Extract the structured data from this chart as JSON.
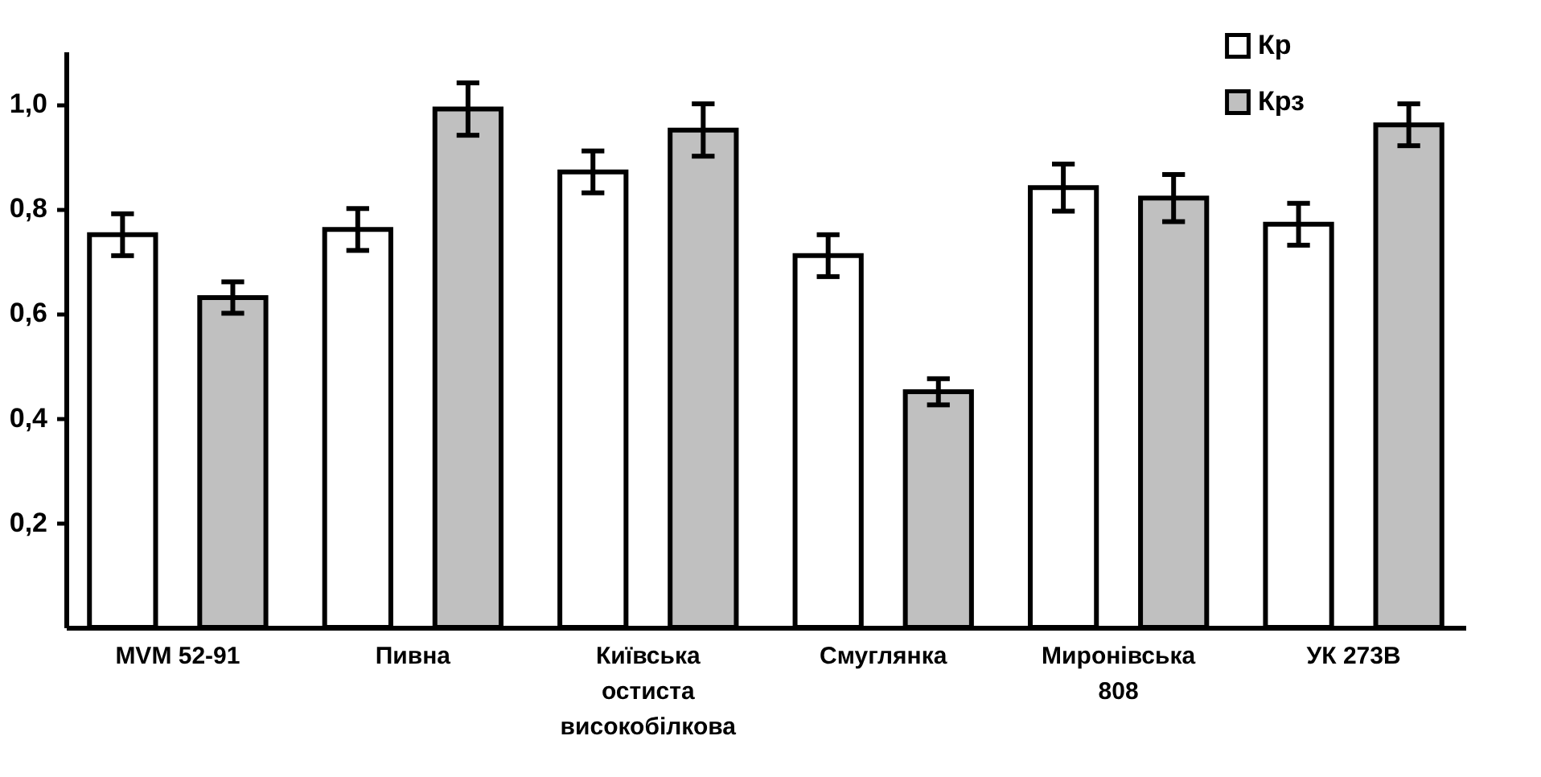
{
  "chart_data": {
    "type": "bar",
    "categories": [
      "MVM 52-91",
      "Пивна",
      "Київська остиста високобілкова",
      "Смуглянка",
      "Миронівська 808",
      "УК 273В"
    ],
    "series": [
      {
        "name": "Кр",
        "color": "#ffffff",
        "values": [
          0.75,
          0.76,
          0.87,
          0.71,
          0.84,
          0.77
        ],
        "errors": [
          0.04,
          0.04,
          0.04,
          0.04,
          0.045,
          0.04
        ]
      },
      {
        "name": "Крз",
        "color": "#c0c0c0",
        "values": [
          0.63,
          0.99,
          0.95,
          0.45,
          0.82,
          0.96
        ],
        "errors": [
          0.03,
          0.05,
          0.05,
          0.025,
          0.045,
          0.04
        ]
      }
    ],
    "ylim": [
      0,
      1.1
    ],
    "yticks": [
      {
        "value": 0.2,
        "label": "0,2"
      },
      {
        "value": 0.4,
        "label": "0,4"
      },
      {
        "value": 0.6,
        "label": "0,6"
      },
      {
        "value": 0.8,
        "label": "0,8"
      },
      {
        "value": 1.0,
        "label": "1,0"
      }
    ],
    "grid": false,
    "legend": "top right"
  }
}
